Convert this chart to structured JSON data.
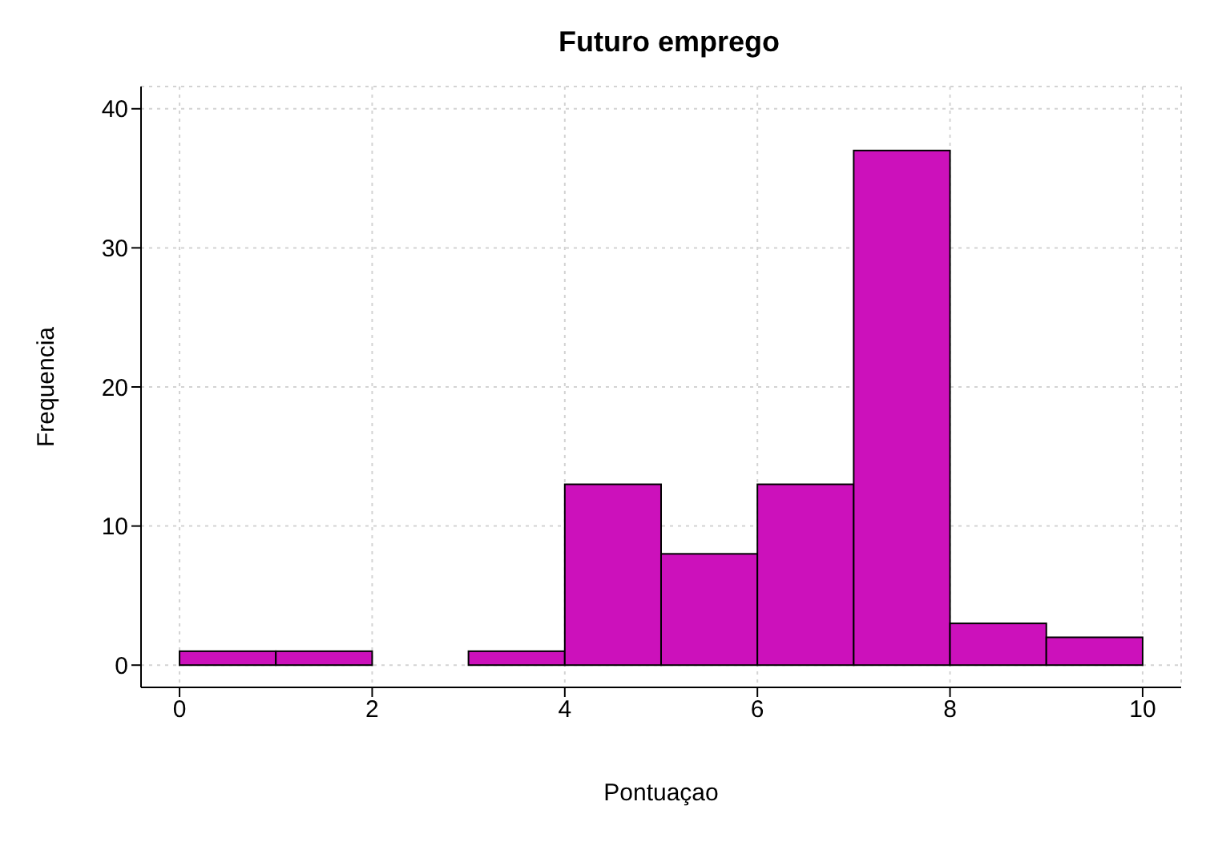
{
  "chart_data": {
    "type": "histogram",
    "title": "Futuro emprego",
    "xlabel": "Pontuaçao",
    "ylabel": "Frequencia",
    "bins": [
      0,
      1,
      2,
      3,
      4,
      5,
      6,
      7,
      8,
      9,
      10
    ],
    "values": [
      1,
      1,
      0,
      1,
      13,
      8,
      13,
      37,
      3,
      2
    ],
    "color": "#cc11bb",
    "xlim": [
      -0.4,
      10.4
    ],
    "xticks": [
      0,
      2,
      4,
      6,
      8,
      10
    ],
    "ylim": [
      -1.6,
      41.6
    ],
    "yticks": [
      0,
      10,
      20,
      30,
      40
    ],
    "grid": true
  }
}
